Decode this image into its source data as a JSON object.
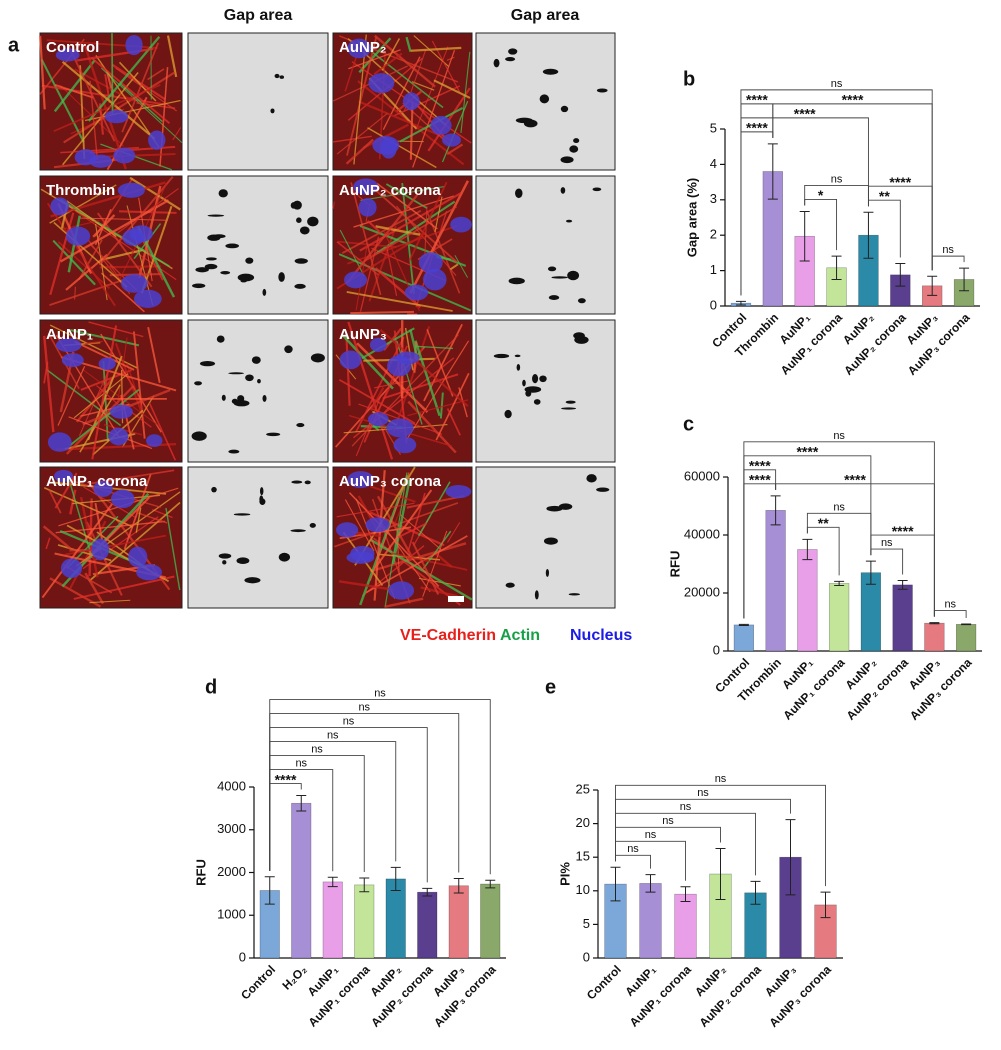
{
  "panel_a": {
    "panel_label": "a",
    "column_headers": [
      "Gap area",
      "Gap area"
    ],
    "image_labels": [
      "Control",
      "Thrombin",
      "AuNP₁",
      "AuNP₁ corona",
      "AuNP₂",
      "AuNP₂ corona",
      "AuNP₃",
      "AuNP₃ corona"
    ],
    "legend": [
      {
        "text": "VE-Cadherin",
        "color": "#e8201c"
      },
      {
        "text": "Actin",
        "color": "#18a048"
      },
      {
        "text": "Nucleus",
        "color": "#1c1ce6"
      }
    ]
  },
  "chart_data": [
    {
      "type": "bar",
      "panel_label": "b",
      "ylabel": "Gap area (%)",
      "categories": [
        "Control",
        "Thrombin",
        "AuNP₁",
        "AuNP₁ corona",
        "AuNP₂",
        "AuNP₂ corona",
        "AuNP₃",
        "AuNP₃ corona"
      ],
      "values": [
        0.08,
        3.8,
        1.97,
        1.08,
        2.0,
        0.88,
        0.57,
        0.75
      ],
      "errors": [
        0.05,
        0.78,
        0.7,
        0.33,
        0.65,
        0.32,
        0.27,
        0.32
      ],
      "colors": [
        "#7ba7d9",
        "#a78fd6",
        "#e99fe8",
        "#c2e59a",
        "#2a8aa8",
        "#5a3f8f",
        "#e57b80",
        "#8aa86a"
      ],
      "ylim": [
        0,
        5
      ],
      "yticks": [
        0,
        1,
        2,
        3,
        4,
        5
      ],
      "significance": [
        {
          "label": "****",
          "between": [
            0,
            1
          ]
        },
        {
          "label": "*",
          "between": [
            2,
            3
          ]
        },
        {
          "label": "**",
          "between": [
            4,
            5
          ]
        },
        {
          "label": "ns",
          "between": [
            6,
            7
          ]
        },
        {
          "label": "ns",
          "between": [
            2,
            4
          ]
        },
        {
          "label": "****",
          "between": [
            4,
            6
          ]
        },
        {
          "label": "****",
          "between": [
            0,
            4
          ]
        },
        {
          "label": "****",
          "between": [
            0,
            1
          ]
        },
        {
          "label": "****",
          "between": [
            1,
            6
          ]
        },
        {
          "label": "ns",
          "between": [
            0,
            6
          ]
        }
      ]
    },
    {
      "type": "bar",
      "panel_label": "c",
      "ylabel": "RFU",
      "categories": [
        "Control",
        "Thrombin",
        "AuNP₁",
        "AuNP₁ corona",
        "AuNP₂",
        "AuNP₂ corona",
        "AuNP₃",
        "AuNP₃ corona"
      ],
      "values": [
        9000,
        48500,
        35000,
        23300,
        27000,
        22800,
        9600,
        9200
      ],
      "errors": [
        200,
        5000,
        3500,
        700,
        4000,
        1500,
        200,
        100
      ],
      "colors": [
        "#7ba7d9",
        "#a78fd6",
        "#e99fe8",
        "#c2e59a",
        "#2a8aa8",
        "#5a3f8f",
        "#e57b80",
        "#8aa86a"
      ],
      "ylim": [
        0,
        60000
      ],
      "yticks": [
        0,
        20000,
        40000,
        60000
      ],
      "significance": [
        {
          "label": "****",
          "between": [
            0,
            1
          ]
        },
        {
          "label": "**",
          "between": [
            2,
            3
          ]
        },
        {
          "label": "ns",
          "between": [
            4,
            5
          ]
        },
        {
          "label": "ns",
          "between": [
            6,
            7
          ]
        },
        {
          "label": "ns",
          "between": [
            2,
            4
          ]
        },
        {
          "label": "****",
          "between": [
            4,
            6
          ]
        },
        {
          "label": "****",
          "between": [
            0,
            1
          ]
        },
        {
          "label": "****",
          "between": [
            1,
            6
          ]
        },
        {
          "label": "****",
          "between": [
            0,
            4
          ]
        },
        {
          "label": "ns",
          "between": [
            0,
            6
          ]
        }
      ]
    },
    {
      "type": "bar",
      "panel_label": "d",
      "ylabel": "RFU",
      "categories": [
        "Control",
        "H₂O₂",
        "AuNP₁",
        "AuNP₁ corona",
        "AuNP₂",
        "AuNP₂ corona",
        "AuNP₃",
        "AuNP₃ corona"
      ],
      "values": [
        1580,
        3620,
        1780,
        1710,
        1850,
        1540,
        1690,
        1730
      ],
      "errors": [
        320,
        180,
        110,
        160,
        270,
        90,
        170,
        90
      ],
      "colors": [
        "#7ba7d9",
        "#a78fd6",
        "#e99fe8",
        "#c2e59a",
        "#2a8aa8",
        "#5a3f8f",
        "#e57b80",
        "#8aa86a"
      ],
      "ylim": [
        0,
        4000
      ],
      "yticks": [
        0,
        1000,
        2000,
        3000,
        4000
      ],
      "significance": [
        {
          "label": "****",
          "between": [
            0,
            1
          ]
        },
        {
          "label": "ns",
          "between": [
            0,
            2
          ]
        },
        {
          "label": "ns",
          "between": [
            0,
            3
          ]
        },
        {
          "label": "ns",
          "between": [
            0,
            4
          ]
        },
        {
          "label": "ns",
          "between": [
            0,
            5
          ]
        },
        {
          "label": "ns",
          "between": [
            0,
            6
          ]
        },
        {
          "label": "ns",
          "between": [
            0,
            7
          ]
        }
      ]
    },
    {
      "type": "bar",
      "panel_label": "e",
      "ylabel": "PI%",
      "categories": [
        "Control",
        "AuNP₁",
        "AuNP₁ corona",
        "AuNP₂",
        "AuNP₂ corona",
        "AuNP₃",
        "AuNP₃ corona"
      ],
      "values": [
        11,
        11.1,
        9.5,
        12.5,
        9.7,
        15,
        7.9
      ],
      "errors": [
        2.5,
        1.3,
        1.1,
        3.8,
        1.7,
        5.6,
        1.9
      ],
      "colors": [
        "#7ba7d9",
        "#a78fd6",
        "#e99fe8",
        "#c2e59a",
        "#2a8aa8",
        "#5a3f8f",
        "#e57b80"
      ],
      "ylim": [
        0,
        25
      ],
      "yticks": [
        0,
        5,
        10,
        15,
        20,
        25
      ],
      "significance": [
        {
          "label": "ns",
          "between": [
            0,
            1
          ]
        },
        {
          "label": "ns",
          "between": [
            0,
            2
          ]
        },
        {
          "label": "ns",
          "between": [
            0,
            3
          ]
        },
        {
          "label": "ns",
          "between": [
            0,
            4
          ]
        },
        {
          "label": "ns",
          "between": [
            0,
            5
          ]
        },
        {
          "label": "ns",
          "between": [
            0,
            6
          ]
        }
      ]
    }
  ]
}
